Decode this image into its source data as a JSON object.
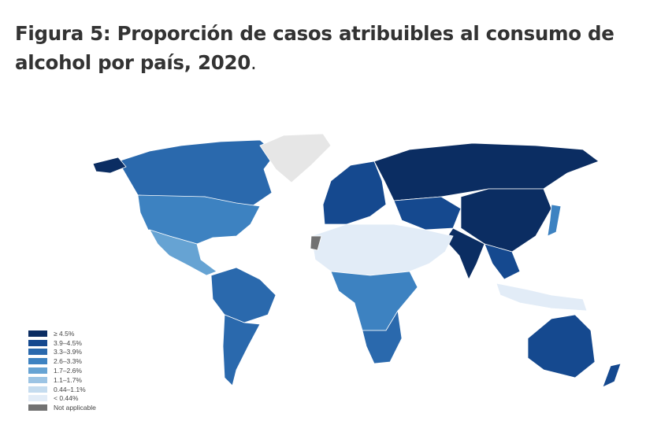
{
  "title": "Figura 5: Proporción de casos atribuibles al consumo de alcohol por país, 2020",
  "title_suffix": ".",
  "chart_data": {
    "type": "choropleth",
    "title": "Figura 5: Proporción de casos atribuibles al consumo de alcohol por país, 2020",
    "legend_position": "bottom-left",
    "legend": [
      {
        "label": "≥ 4.5%",
        "color": "#0b2d62"
      },
      {
        "label": "3.9–4.5%",
        "color": "#15498f"
      },
      {
        "label": "3.3–3.9%",
        "color": "#2a69ad"
      },
      {
        "label": "2.6–3.3%",
        "color": "#3d82c1"
      },
      {
        "label": "1.7–2.6%",
        "color": "#66a3d3"
      },
      {
        "label": "1.1–1.7%",
        "color": "#9cc4e4"
      },
      {
        "label": "0.44–1.1%",
        "color": "#c5dcef"
      },
      {
        "label": "< 0.44%",
        "color": "#e2ecf7"
      },
      {
        "label": "Not applicable",
        "color": "#727272"
      }
    ],
    "regions": [
      {
        "name": "Canada",
        "class": 2
      },
      {
        "name": "USA",
        "class": 3
      },
      {
        "name": "Alaska",
        "class": 0
      },
      {
        "name": "Greenland",
        "class": 9
      },
      {
        "name": "Mexico/Central America",
        "class": 4
      },
      {
        "name": "South America (north)",
        "class": 2
      },
      {
        "name": "South America (south)",
        "class": 2
      },
      {
        "name": "Western Europe",
        "class": 1
      },
      {
        "name": "Russia",
        "class": 0
      },
      {
        "name": "Central Asia",
        "class": 1
      },
      {
        "name": "China",
        "class": 0
      },
      {
        "name": "India",
        "class": 0
      },
      {
        "name": "Southeast Asia",
        "class": 1
      },
      {
        "name": "Japan",
        "class": 3
      },
      {
        "name": "North Africa & Middle East",
        "class": 7
      },
      {
        "name": "Sub-Saharan Africa",
        "class": 3
      },
      {
        "name": "Southern Africa",
        "class": 2
      },
      {
        "name": "Indonesia",
        "class": 7
      },
      {
        "name": "Australia",
        "class": 1
      },
      {
        "name": "New Zealand",
        "class": 1
      },
      {
        "name": "Western Sahara",
        "class": 8
      }
    ]
  }
}
